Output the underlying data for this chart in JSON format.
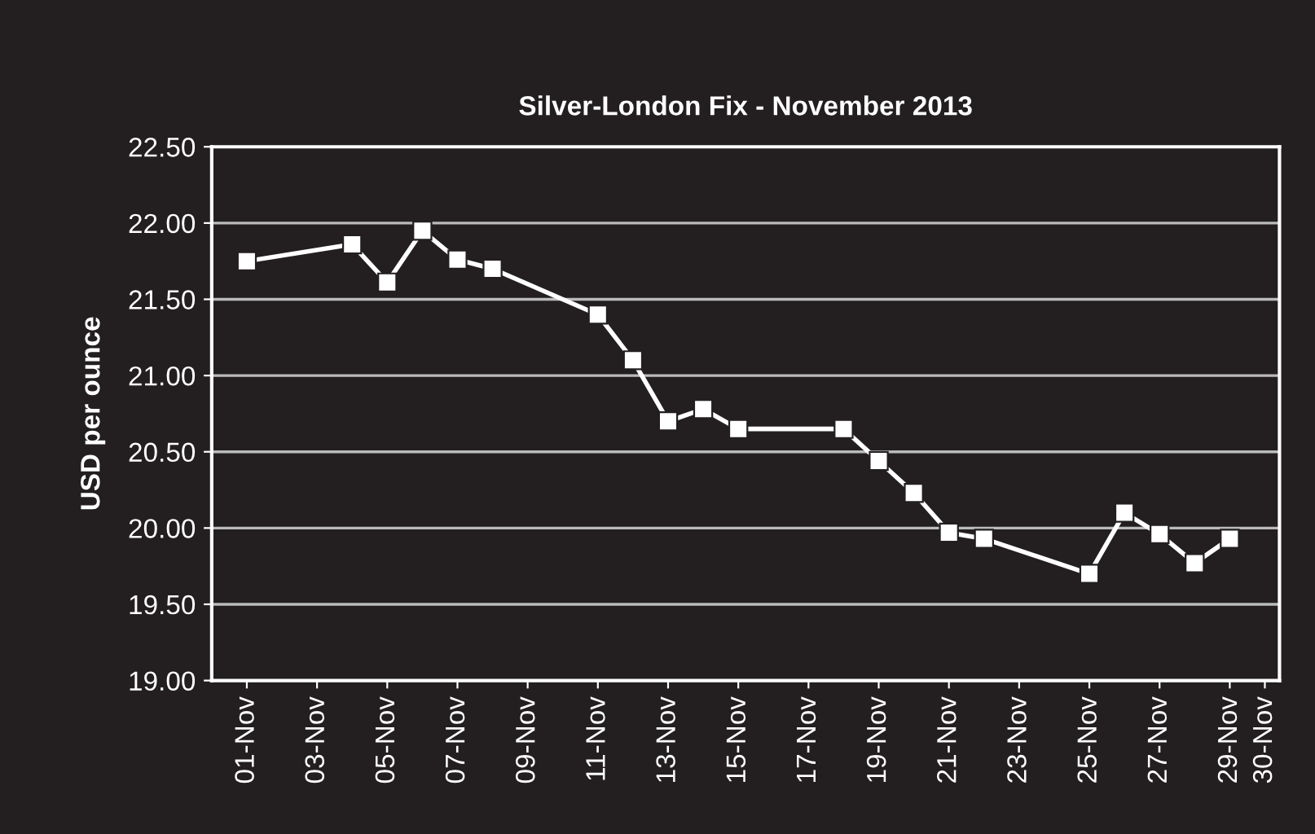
{
  "chart_data": {
    "type": "line",
    "title": "Silver-London Fix - November 2013",
    "ylabel": "USD per ounce",
    "x": [
      "2013-11-01",
      "2013-11-04",
      "2013-11-05",
      "2013-11-06",
      "2013-11-07",
      "2013-11-08",
      "2013-11-11",
      "2013-11-12",
      "2013-11-13",
      "2013-11-14",
      "2013-11-15",
      "2013-11-18",
      "2013-11-19",
      "2013-11-20",
      "2013-11-21",
      "2013-11-22",
      "2013-11-25",
      "2013-11-26",
      "2013-11-27",
      "2013-11-28",
      "2013-11-29"
    ],
    "series": [
      {
        "color": "#ffffff",
        "values": [
          21.75,
          21.86,
          21.61,
          21.95,
          21.76,
          21.7,
          21.4,
          21.1,
          20.7,
          20.78,
          20.65,
          20.65,
          20.44,
          20.23,
          19.97,
          19.93,
          19.7,
          20.1,
          19.96,
          19.77,
          19.93
        ]
      }
    ],
    "marker": "square",
    "line_style": "solid",
    "grid": "y",
    "xlim": [
      "2013-10-31",
      "2013-11-30T10:00"
    ],
    "xticks": [
      {
        "value": "2013-11-01",
        "label": "01-Nov"
      },
      {
        "value": "2013-11-03",
        "label": "03-Nov"
      },
      {
        "value": "2013-11-05",
        "label": "05-Nov"
      },
      {
        "value": "2013-11-07",
        "label": "07-Nov"
      },
      {
        "value": "2013-11-09",
        "label": "09-Nov"
      },
      {
        "value": "2013-11-11",
        "label": "11-Nov"
      },
      {
        "value": "2013-11-13",
        "label": "13-Nov"
      },
      {
        "value": "2013-11-15",
        "label": "15-Nov"
      },
      {
        "value": "2013-11-17",
        "label": "17-Nov"
      },
      {
        "value": "2013-11-19",
        "label": "19-Nov"
      },
      {
        "value": "2013-11-21",
        "label": "21-Nov"
      },
      {
        "value": "2013-11-23",
        "label": "23-Nov"
      },
      {
        "value": "2013-11-25",
        "label": "25-Nov"
      },
      {
        "value": "2013-11-27",
        "label": "27-Nov"
      },
      {
        "value": "2013-11-29",
        "label": "29-Nov"
      },
      {
        "value": "2013-11-30",
        "label": "30-Nov"
      }
    ],
    "ylim": [
      19.0,
      22.5
    ],
    "yticks": [
      {
        "value": 19.0,
        "label": "19.00"
      },
      {
        "value": 19.5,
        "label": "19.50"
      },
      {
        "value": 20.0,
        "label": "20.00"
      },
      {
        "value": 20.5,
        "label": "20.50"
      },
      {
        "value": 21.0,
        "label": "21.00"
      },
      {
        "value": 21.5,
        "label": "21.50"
      },
      {
        "value": 22.0,
        "label": "22.00"
      },
      {
        "value": 22.5,
        "label": "22.50"
      }
    ]
  }
}
